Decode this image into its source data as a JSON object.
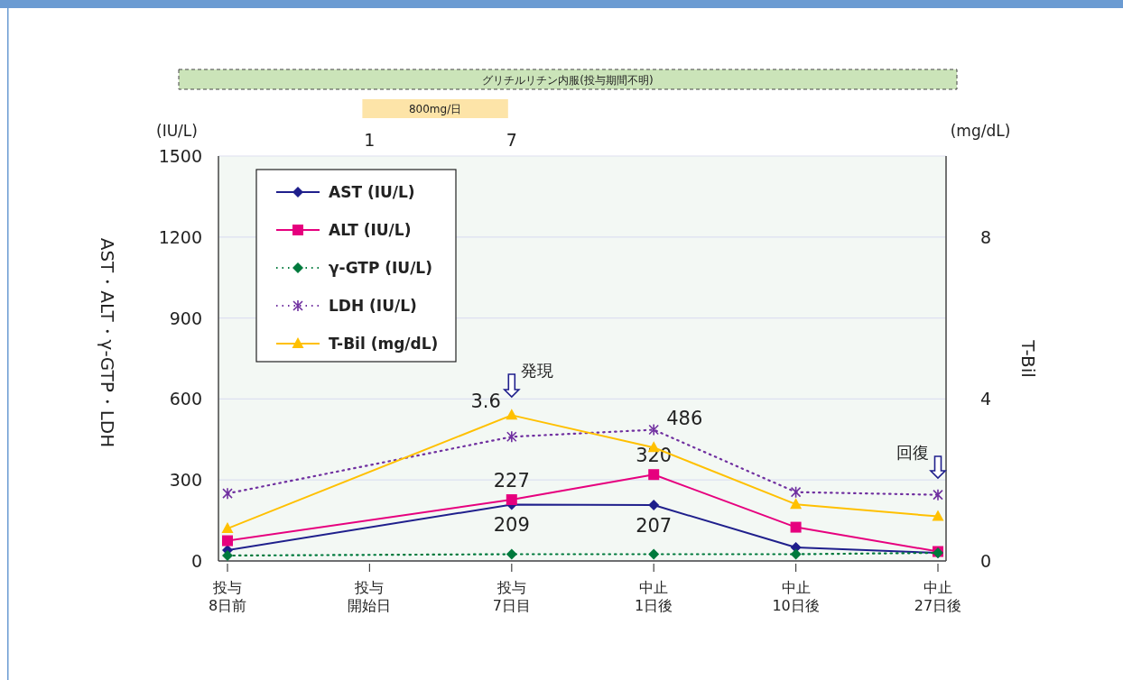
{
  "chart_data": {
    "type": "line",
    "ylabel": "AST・ALT・γ-GTP・LDH",
    "y2label": "T-Bil",
    "categories": [
      "投与8日前",
      "投与開始日",
      "投与7日目",
      "中止1日後",
      "中止10日後",
      "中止27日後"
    ],
    "series": [
      {
        "name": "AST (IU/L)",
        "color": "#1f1f8c",
        "marker": "diamond",
        "line_style": "solid",
        "values": [
          40,
          null,
          209,
          207,
          50,
          30
        ],
        "value_labels": [
          null,
          null,
          "209",
          "207",
          null,
          null
        ]
      },
      {
        "name": "ALT (IU/L)",
        "color": "#e6007e",
        "marker": "square",
        "line_style": "solid",
        "values": [
          75,
          null,
          227,
          320,
          125,
          35
        ],
        "value_labels": [
          null,
          null,
          "227",
          "320",
          null,
          null
        ]
      },
      {
        "name": "γ-GTP (IU/L)",
        "color": "#007a3d",
        "marker": "diamond",
        "line_style": "dotted",
        "values": [
          20,
          null,
          25,
          25,
          25,
          30
        ]
      },
      {
        "name": "LDH (IU/L)",
        "color": "#7030a0",
        "marker": "cross",
        "line_style": "dotted",
        "values": [
          250,
          null,
          460,
          486,
          255,
          245
        ],
        "value_labels": [
          null,
          null,
          null,
          "486",
          null,
          null
        ]
      },
      {
        "name": "T-Bil (mg/dL)",
        "color": "#ffc000",
        "marker": "triangle",
        "line_style": "solid",
        "axis": "y2",
        "values": [
          0.8,
          null,
          3.6,
          2.8,
          1.4,
          1.1
        ],
        "value_labels": [
          null,
          null,
          "3.6",
          null,
          null,
          null
        ]
      }
    ],
    "ylim": [
      0,
      1500
    ],
    "yticks": [
      0,
      300,
      600,
      900,
      1200,
      1500
    ],
    "y2lim": [
      0,
      10
    ],
    "y2ticks": [
      0,
      4,
      8
    ],
    "grid": "y",
    "legend": "top left",
    "annotations": [
      "グリチルリチン内服(投与期間不明)",
      "800mg/日",
      "(IU/L)",
      "(mg/dL)",
      "1",
      "7",
      "発現",
      "回復"
    ]
  }
}
